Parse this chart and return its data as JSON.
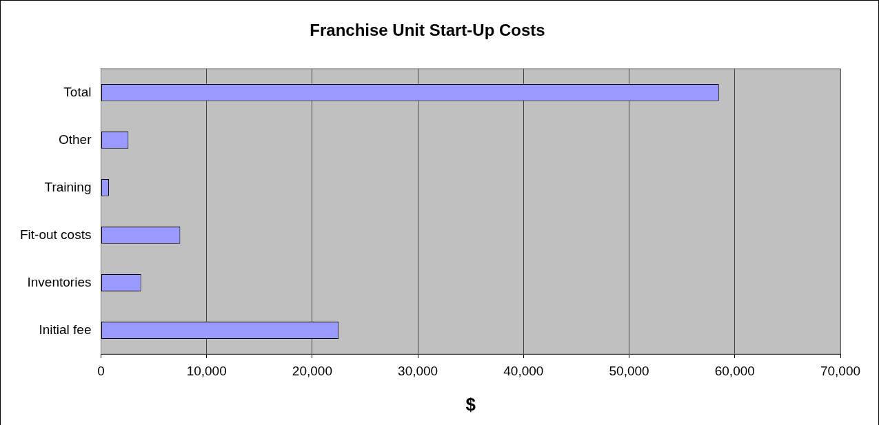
{
  "chart_data": {
    "type": "bar",
    "orientation": "horizontal",
    "title": "Franchise Unit Start-Up Costs",
    "xlabel": "$",
    "categories": [
      "Total",
      "Other",
      "Training",
      "Fit-out costs",
      "Inventories",
      "Initial fee"
    ],
    "values": [
      58500,
      2600,
      750,
      7500,
      3800,
      22500
    ],
    "color": "#9999ff",
    "xlim": [
      0,
      70000
    ],
    "xticks": [
      0,
      {
        "value": 10000,
        "label": "10,000"
      },
      {
        "value": 20000,
        "label": "20,000"
      },
      {
        "value": 30000,
        "label": "30,000"
      },
      {
        "value": 40000,
        "label": "40,000"
      },
      {
        "value": 50000,
        "label": "50,000"
      },
      {
        "value": 60000,
        "label": "60,000"
      },
      {
        "value": 70000,
        "label": "70,000"
      }
    ],
    "grid": "x",
    "legend": false
  }
}
